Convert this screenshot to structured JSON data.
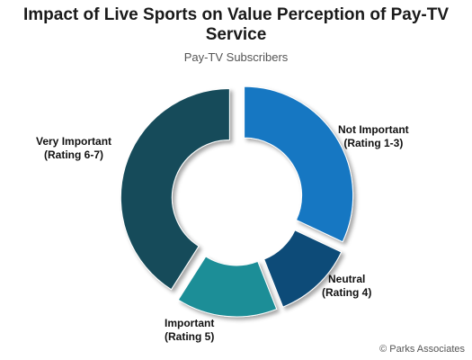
{
  "chart_data": {
    "type": "pie",
    "title": "Impact of Live Sports on Value Perception of Pay-TV Service",
    "subtitle": "Pay-TV Subscribers",
    "slices": [
      {
        "label": "Not Important (Rating 1-3)",
        "line1": "Not Important",
        "line2": "(Rating 1-3)",
        "value": 32,
        "color": "#1877c2"
      },
      {
        "label": "Neutral (Rating 4)",
        "line1": "Neutral",
        "line2": "(Rating 4)",
        "value": 12,
        "color": "#0e4b78"
      },
      {
        "label": "Important (Rating 5)",
        "line1": "Important",
        "line2": "(Rating 5)",
        "value": 15,
        "color": "#1e8e97"
      },
      {
        "label": "Very Important (Rating 6-7)",
        "line1": "Very Important",
        "line2": "(Rating 6-7)",
        "value": 41,
        "color": "#124c5a"
      }
    ],
    "donut": true,
    "legend": "none"
  },
  "copyright": "© Parks Associates"
}
